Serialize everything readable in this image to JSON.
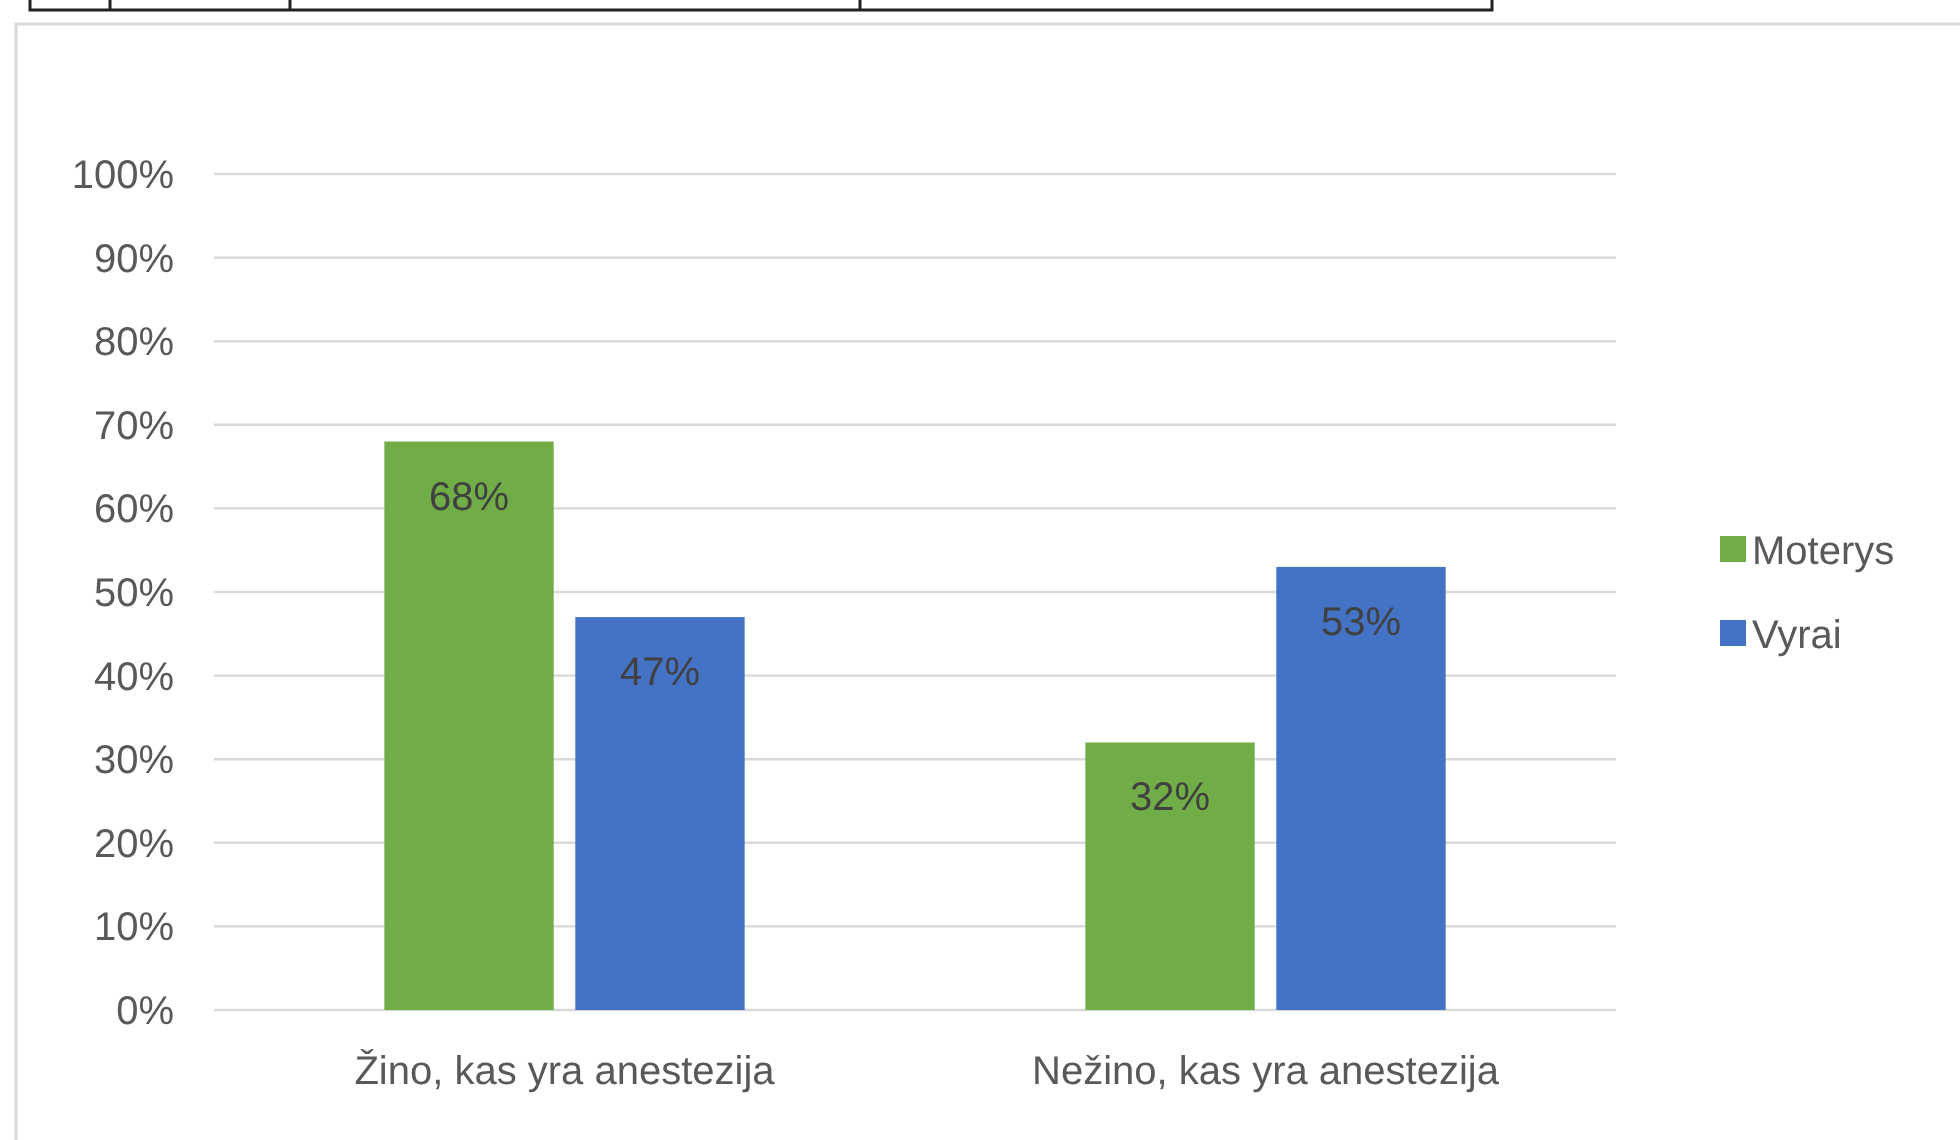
{
  "chart_data": {
    "type": "bar",
    "categories": [
      "Žino, kas yra anestezija",
      "Nežino, kas yra anestezija"
    ],
    "series": [
      {
        "name": "Moterys",
        "color": "#70ad47",
        "values": [
          68,
          32
        ],
        "value_labels": [
          "68%",
          "32%"
        ]
      },
      {
        "name": "Vyrai",
        "color": "#4472c4",
        "values": [
          47,
          53
        ],
        "value_labels": [
          "47%",
          "53%"
        ]
      }
    ],
    "ylim": [
      0,
      100
    ],
    "yticks": [
      {
        "value": 0,
        "label": "0%"
      },
      {
        "value": 10,
        "label": "10%"
      },
      {
        "value": 20,
        "label": "20%"
      },
      {
        "value": 30,
        "label": "30%"
      },
      {
        "value": 40,
        "label": "40%"
      },
      {
        "value": 50,
        "label": "50%"
      },
      {
        "value": 60,
        "label": "60%"
      },
      {
        "value": 70,
        "label": "70%"
      },
      {
        "value": 80,
        "label": "80%"
      },
      {
        "value": 90,
        "label": "90%"
      },
      {
        "value": 100,
        "label": "100%"
      }
    ],
    "grid": "y",
    "legend": "right"
  }
}
